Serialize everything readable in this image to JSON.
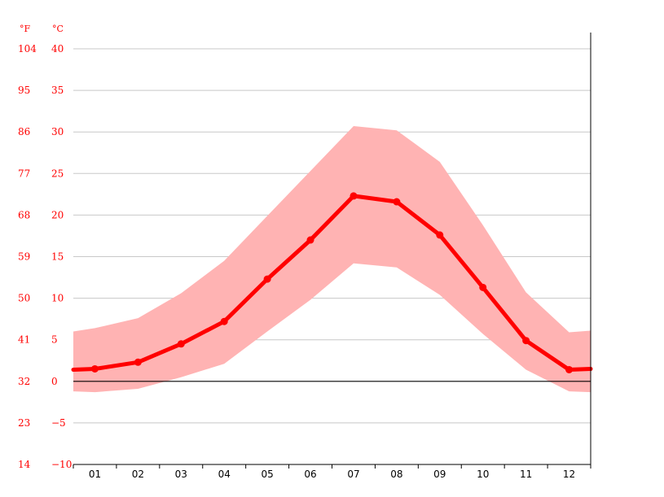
{
  "chart_data": {
    "type": "line",
    "title": "",
    "xlabel": "",
    "ylabel": "",
    "unit_left": "°F",
    "unit_right": "°C",
    "categories": [
      "01",
      "02",
      "03",
      "04",
      "05",
      "06",
      "07",
      "08",
      "09",
      "10",
      "11",
      "12"
    ],
    "ylim": [
      -10,
      40
    ],
    "y_ticks_c": [
      "40",
      "35",
      "30",
      "25",
      "20",
      "15",
      "10",
      "5",
      "0",
      "−5",
      "−10"
    ],
    "y_ticks_f": [
      "104",
      "95",
      "86",
      "77",
      "68",
      "59",
      "50",
      "41",
      "32",
      "23",
      "14"
    ],
    "grid": true,
    "series": [
      {
        "name": "",
        "role": "mean",
        "values": [
          1.5,
          2.3,
          4.5,
          7.2,
          12.3,
          17.0,
          22.3,
          21.6,
          17.6,
          11.3,
          4.9,
          1.4
        ]
      }
    ],
    "band": {
      "min": [
        -1.3,
        -0.9,
        0.5,
        2.1,
        6.0,
        9.8,
        14.2,
        13.7,
        10.4,
        5.7,
        1.4,
        -1.2
      ],
      "max": [
        6.4,
        7.6,
        10.6,
        14.5,
        19.9,
        25.3,
        30.7,
        30.2,
        26.4,
        18.8,
        10.7,
        5.9
      ],
      "edge_left_min": -1.2,
      "edge_left_max": 6.0,
      "edge_right_min": -1.3,
      "edge_right_max": 6.1,
      "edge_left_mean": 1.4,
      "edge_right_mean": 1.5
    },
    "colors": {
      "line": "#ff0000",
      "band": "#ffb3b3",
      "grid": "#c8c8c8",
      "zero_line": "#000000",
      "axis": "#000000",
      "tick_labels": "#ff0000"
    }
  }
}
